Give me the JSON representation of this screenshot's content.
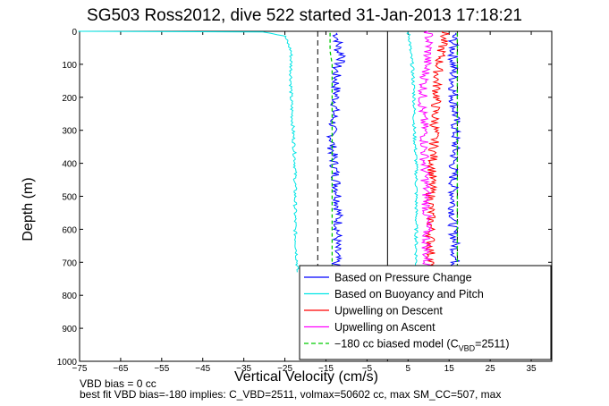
{
  "figure": {
    "title": "SG503 Ross2012, dive 522 started 31-Jan-2013 17:18:21",
    "footer_line1": "VBD bias = 0 cc",
    "footer_line2": "best fit VBD bias=-180 implies: C_VBD=2511, volmax=50602 cc, max SM_CC=507, max"
  },
  "chart_data": {
    "type": "line",
    "xlabel": "Vertical Velocity (cm/s)",
    "ylabel": "Depth (m)",
    "xlim": [
      -75,
      40
    ],
    "ylim": [
      1000,
      0
    ],
    "y_reversed": true,
    "xticks": [
      -75,
      -65,
      -55,
      -45,
      -35,
      -25,
      -15,
      -5,
      5,
      15,
      25,
      35
    ],
    "yticks": [
      0,
      100,
      200,
      300,
      400,
      500,
      600,
      700,
      800,
      900,
      1000
    ],
    "grid": false,
    "legend_location": "bottom-right",
    "series": [
      {
        "name": "Based on Pressure Change",
        "color": "#0000ff",
        "points": [
          [
            -12.5,
            5
          ],
          [
            -12,
            30
          ],
          [
            -12,
            60
          ],
          [
            -10.5,
            75
          ],
          [
            -11.5,
            90
          ],
          [
            -12.5,
            110
          ],
          [
            -12.5,
            150
          ],
          [
            -12.5,
            200
          ],
          [
            -13,
            250
          ],
          [
            -13.5,
            300
          ],
          [
            -13.5,
            350
          ],
          [
            -13,
            400
          ],
          [
            -12.5,
            450
          ],
          [
            -12,
            500
          ],
          [
            -12,
            550
          ],
          [
            -12,
            600
          ],
          [
            -12.5,
            650
          ],
          [
            -12.5,
            700
          ],
          [
            -13,
            725
          ]
        ]
      },
      {
        "name": "",
        "color": "#0000ff",
        "points": [
          [
            16,
            5
          ],
          [
            16,
            50
          ],
          [
            16,
            100
          ],
          [
            16,
            150
          ],
          [
            16,
            200
          ],
          [
            16.5,
            250
          ],
          [
            16.5,
            300
          ],
          [
            16.5,
            350
          ],
          [
            16,
            400
          ],
          [
            16,
            450
          ],
          [
            16,
            500
          ],
          [
            16,
            550
          ],
          [
            16,
            600
          ],
          [
            16.5,
            650
          ],
          [
            16.5,
            700
          ],
          [
            16.5,
            725
          ]
        ]
      },
      {
        "name": "Based on Buoyancy and Pitch",
        "color": "#00e5e5",
        "points": [
          [
            -75,
            0
          ],
          [
            -30,
            2
          ],
          [
            -25,
            15
          ],
          [
            -23.5,
            60
          ],
          [
            -23.5,
            100
          ],
          [
            -23.5,
            200
          ],
          [
            -23,
            300
          ],
          [
            -22.5,
            400
          ],
          [
            -22.5,
            500
          ],
          [
            -22.5,
            600
          ],
          [
            -22,
            700
          ],
          [
            -22,
            730
          ]
        ]
      },
      {
        "name": "",
        "color": "#00e5e5",
        "points": [
          [
            5,
            2
          ],
          [
            5.5,
            30
          ],
          [
            5.5,
            60
          ],
          [
            6,
            100
          ],
          [
            6.5,
            200
          ],
          [
            6.5,
            300
          ],
          [
            7,
            400
          ],
          [
            7,
            500
          ],
          [
            7,
            600
          ],
          [
            7,
            700
          ],
          [
            7,
            730
          ]
        ]
      },
      {
        "name": "Upwelling on Descent",
        "color": "#ff0000",
        "points": [
          [
            14,
            0
          ],
          [
            13.5,
            30
          ],
          [
            13,
            70
          ],
          [
            12.5,
            100
          ],
          [
            12,
            150
          ],
          [
            12,
            200
          ],
          [
            11.5,
            250
          ],
          [
            11.5,
            300
          ],
          [
            11,
            400
          ],
          [
            10.5,
            500
          ],
          [
            10.5,
            600
          ],
          [
            10.5,
            700
          ],
          [
            10.5,
            730
          ]
        ]
      },
      {
        "name": "Upwelling on Ascent",
        "color": "#ff00ff",
        "points": [
          [
            10,
            0
          ],
          [
            10,
            50
          ],
          [
            9.5,
            100
          ],
          [
            9,
            150
          ],
          [
            8.5,
            200
          ],
          [
            8.5,
            250
          ],
          [
            9,
            300
          ],
          [
            9,
            400
          ],
          [
            9.5,
            500
          ],
          [
            9.5,
            600
          ],
          [
            9.5,
            700
          ],
          [
            9.5,
            730
          ]
        ]
      },
      {
        "name": "-180 cc biased model (C_VBD=2511)",
        "color": "#00cc00",
        "dashed": true,
        "points": [
          [
            -14,
            5
          ],
          [
            -14,
            60
          ],
          [
            -13.5,
            100
          ],
          [
            -13.5,
            200
          ],
          [
            -13.5,
            400
          ],
          [
            -13.5,
            600
          ],
          [
            -13.5,
            725
          ]
        ]
      },
      {
        "name": "",
        "color": "#00cc00",
        "dashed": true,
        "points": [
          [
            17,
            5
          ],
          [
            17,
            100
          ],
          [
            17,
            300
          ],
          [
            17,
            500
          ],
          [
            17,
            725
          ]
        ]
      }
    ],
    "reference_lines": [
      {
        "x": 0,
        "style": "solid",
        "color": "#000000"
      },
      {
        "x": -17,
        "style": "dashed",
        "color": "#000000"
      },
      {
        "x": 17,
        "style": "dashed",
        "color": "#000000"
      }
    ],
    "legend": [
      {
        "label": "Based on Pressure Change",
        "color": "#0000ff",
        "dashed": false
      },
      {
        "label": "Based on Buoyancy and Pitch",
        "color": "#00e5e5",
        "dashed": false
      },
      {
        "label": "Upwelling on Descent",
        "color": "#ff0000",
        "dashed": false
      },
      {
        "label": "Upwelling on Ascent",
        "color": "#ff00ff",
        "dashed": false
      },
      {
        "label": "-180 cc biased model (C",
        "sub": "VBD",
        "suffix": "=2511)",
        "color": "#00cc00",
        "dashed": true
      }
    ]
  }
}
